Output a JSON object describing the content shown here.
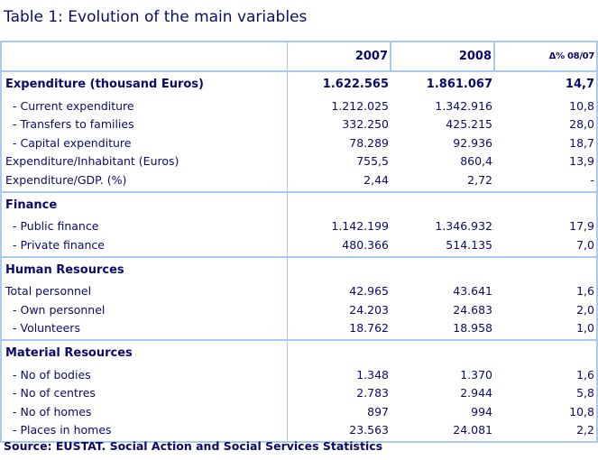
{
  "title": "Table 1: Evolution of the main variables",
  "columns": [
    "2007",
    "2008",
    "Δ% 08/07"
  ],
  "sections": [
    {
      "title": "Expenditure (thousand Euros)",
      "values": [
        "1.622.565",
        "1.861.067",
        "14,7"
      ],
      "rows": [
        {
          "label": "- Current expenditure",
          "indent": true,
          "values": [
            "1.212.025",
            "1.342.916",
            "10,8"
          ]
        },
        {
          "label": "- Transfers to families",
          "indent": true,
          "values": [
            "332.250",
            "425.215",
            "28,0"
          ]
        },
        {
          "label": "- Capital expenditure",
          "indent": true,
          "values": [
            "78.289",
            "92.936",
            "18,7"
          ]
        },
        {
          "label": "Expenditure/Inhabitant (Euros)",
          "indent": false,
          "values": [
            "755,5",
            "860,4",
            "13,9"
          ]
        },
        {
          "label": "Expenditure/GDP. (%)",
          "indent": false,
          "values": [
            "2,44",
            "2,72",
            "-"
          ]
        }
      ]
    },
    {
      "title": "Finance",
      "values": [
        "",
        "",
        ""
      ],
      "rows": [
        {
          "label": "- Public finance",
          "indent": true,
          "values": [
            "1.142.199",
            "1.346.932",
            "17,9"
          ]
        },
        {
          "label": "- Private finance",
          "indent": true,
          "values": [
            "480.366",
            "514.135",
            "7,0"
          ]
        }
      ]
    },
    {
      "title": "Human Resources",
      "values": [
        "",
        "",
        ""
      ],
      "rows": [
        {
          "label": "Total personnel",
          "indent": false,
          "values": [
            "42.965",
            "43.641",
            "1,6"
          ]
        },
        {
          "label": "- Own personnel",
          "indent": true,
          "values": [
            "24.203",
            "24.683",
            "2,0"
          ]
        },
        {
          "label": "- Volunteers",
          "indent": true,
          "values": [
            "18.762",
            "18.958",
            "1,0"
          ]
        }
      ]
    },
    {
      "title": "Material Resources",
      "values": [
        "",
        "",
        ""
      ],
      "rows": [
        {
          "label": "- No of bodies",
          "indent": true,
          "values": [
            "1.348",
            "1.370",
            "1,6"
          ]
        },
        {
          "label": "- No of centres",
          "indent": true,
          "values": [
            "2.783",
            "2.944",
            "5,8"
          ]
        },
        {
          "label": "- No of homes",
          "indent": true,
          "values": [
            "897",
            "994",
            "10,8"
          ]
        },
        {
          "label": "- Places in homes",
          "indent": true,
          "values": [
            "23.563",
            "24.081",
            "2,2"
          ]
        }
      ]
    }
  ],
  "source": "Source: EUSTAT. Social Action and Social Services Statistics"
}
